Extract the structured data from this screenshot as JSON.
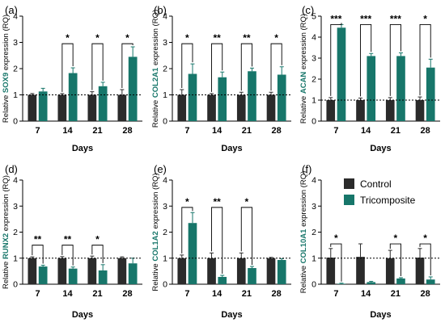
{
  "colors": {
    "control": "#2b2b2b",
    "tricomposite": "#17766a",
    "gene": "#17766a"
  },
  "legend": {
    "placement": "top-right of panel (f)",
    "items": [
      {
        "label": "Control",
        "color": "#2b2b2b"
      },
      {
        "label": "Tricomposite",
        "color": "#17766a"
      }
    ]
  },
  "chart_data": [
    {
      "type": "bar",
      "panel": "(a)",
      "gene": "SOX9",
      "ylabel_prefix": "Relative ",
      "ylabel_suffix": " expression (RQ)",
      "xlabel": "Days",
      "categories": [
        "7",
        "14",
        "21",
        "28"
      ],
      "ylim": [
        0,
        4
      ],
      "yticks": [
        "0",
        "1",
        "2",
        "3",
        "4"
      ],
      "reference_line": 1,
      "series": [
        {
          "name": "Control",
          "values": [
            1.0,
            1.0,
            1.0,
            1.0
          ],
          "errors": [
            0.05,
            0.05,
            0.12,
            0.2
          ]
        },
        {
          "name": "Tricomposite",
          "values": [
            1.13,
            1.83,
            1.33,
            2.45
          ],
          "errors": [
            0.12,
            0.2,
            0.15,
            0.38
          ]
        }
      ],
      "significance": [
        {
          "label": "*",
          "group": 1,
          "bracket_y": 2.95
        },
        {
          "label": "*",
          "group": 2,
          "bracket_y": 2.95
        },
        {
          "label": "*",
          "group": 3,
          "bracket_y": 2.95
        }
      ]
    },
    {
      "type": "bar",
      "panel": "(b)",
      "gene": "COL2A1",
      "ylabel_prefix": "Relative ",
      "ylabel_suffix": " expression (RQ)",
      "xlabel": "Days",
      "categories": [
        "7",
        "14",
        "21",
        "28"
      ],
      "ylim": [
        0,
        4
      ],
      "yticks": [
        "0",
        "1",
        "2",
        "3",
        "4"
      ],
      "reference_line": 1,
      "series": [
        {
          "name": "Control",
          "values": [
            1.0,
            1.0,
            1.0,
            1.0
          ],
          "errors": [
            0.2,
            0.05,
            0.1,
            0.1
          ]
        },
        {
          "name": "Tricomposite",
          "values": [
            1.8,
            1.67,
            1.9,
            1.77
          ],
          "errors": [
            0.38,
            0.2,
            0.12,
            0.3
          ]
        }
      ],
      "significance": [
        {
          "label": "*",
          "group": 0,
          "bracket_y": 2.95
        },
        {
          "label": "**",
          "group": 1,
          "bracket_y": 2.95
        },
        {
          "label": "**",
          "group": 2,
          "bracket_y": 2.95
        },
        {
          "label": "*",
          "group": 3,
          "bracket_y": 2.95
        }
      ]
    },
    {
      "type": "bar",
      "panel": "(c)",
      "gene": "ACAN",
      "ylabel_prefix": "Relative ",
      "ylabel_suffix": " expression (RQ)",
      "xlabel": "Days",
      "categories": [
        "7",
        "14",
        "21",
        "28"
      ],
      "ylim": [
        0,
        5
      ],
      "yticks": [
        "0",
        "1",
        "2",
        "3",
        "4",
        "5"
      ],
      "reference_line": 1,
      "series": [
        {
          "name": "Control",
          "values": [
            1.0,
            1.0,
            1.0,
            1.0
          ],
          "errors": [
            0.12,
            0.1,
            0.12,
            0.15
          ]
        },
        {
          "name": "Tricomposite",
          "values": [
            4.45,
            3.1,
            3.1,
            2.55
          ],
          "errors": [
            0.15,
            0.12,
            0.15,
            0.4
          ]
        }
      ],
      "significance": [
        {
          "label": "***",
          "group": 0,
          "bracket_y": 4.6
        },
        {
          "label": "***",
          "group": 1,
          "bracket_y": 4.6
        },
        {
          "label": "***",
          "group": 2,
          "bracket_y": 4.6
        },
        {
          "label": "*",
          "group": 3,
          "bracket_y": 4.6
        }
      ]
    },
    {
      "type": "bar",
      "panel": "(d)",
      "gene": "RUNX2",
      "ylabel_prefix": "Relative ",
      "ylabel_suffix": " expression (RQ)",
      "xlabel": "Days",
      "categories": [
        "7",
        "14",
        "21",
        "28"
      ],
      "ylim": [
        0,
        4
      ],
      "yticks": [
        "0",
        "1",
        "2",
        "3",
        "4"
      ],
      "reference_line": 1,
      "series": [
        {
          "name": "Control",
          "values": [
            1.0,
            1.0,
            1.0,
            1.0
          ],
          "errors": [
            0.05,
            0.06,
            0.08,
            0.05
          ]
        },
        {
          "name": "Tricomposite",
          "values": [
            0.68,
            0.6,
            0.53,
            0.8
          ],
          "errors": [
            0.05,
            0.06,
            0.22,
            0.2
          ]
        }
      ],
      "significance": [
        {
          "label": "**",
          "group": 0,
          "bracket_y": 1.5
        },
        {
          "label": "**",
          "group": 1,
          "bracket_y": 1.5
        },
        {
          "label": "*",
          "group": 2,
          "bracket_y": 1.5
        }
      ]
    },
    {
      "type": "bar",
      "panel": "(e)",
      "gene": "COL1A2",
      "ylabel_prefix": "Relative ",
      "ylabel_suffix": " expression (RQ)",
      "xlabel": "Days",
      "categories": [
        "7",
        "14",
        "21",
        "28"
      ],
      "ylim": [
        0,
        4
      ],
      "yticks": [
        "0",
        "1",
        "2",
        "3",
        "4"
      ],
      "reference_line": 1,
      "series": [
        {
          "name": "Control",
          "values": [
            1.0,
            1.0,
            1.0,
            1.0
          ],
          "errors": [
            0.12,
            0.2,
            0.2,
            0.03
          ]
        },
        {
          "name": "Tricomposite",
          "values": [
            2.35,
            0.28,
            0.62,
            0.93
          ],
          "errors": [
            0.4,
            0.06,
            0.06,
            0.05
          ]
        }
      ],
      "significance": [
        {
          "label": "*",
          "group": 0,
          "bracket_y": 2.95
        },
        {
          "label": "**",
          "group": 1,
          "bracket_y": 2.95
        },
        {
          "label": "*",
          "group": 2,
          "bracket_y": 2.95
        }
      ]
    },
    {
      "type": "bar",
      "panel": "(f)",
      "gene": "COL10A1",
      "ylabel_prefix": "Relative ",
      "ylabel_suffix": " expression (RQ)",
      "xlabel": "Days",
      "categories": [
        "7",
        "14",
        "21",
        "28"
      ],
      "ylim": [
        0,
        4
      ],
      "yticks": [
        "0",
        "1",
        "2",
        "3",
        "4"
      ],
      "reference_line": 1,
      "series": [
        {
          "name": "Control",
          "values": [
            1.02,
            1.05,
            1.0,
            1.02
          ],
          "errors": [
            0.35,
            0.5,
            0.3,
            0.35
          ]
        },
        {
          "name": "Tricomposite",
          "values": [
            0.02,
            0.08,
            0.22,
            0.18
          ],
          "errors": [
            0.02,
            0.03,
            0.03,
            0.1
          ]
        }
      ],
      "significance": [
        {
          "label": "*",
          "group": 0,
          "bracket_y": 1.55
        },
        {
          "label": "*",
          "group": 2,
          "bracket_y": 1.55
        },
        {
          "label": "*",
          "group": 3,
          "bracket_y": 1.55
        }
      ]
    }
  ]
}
